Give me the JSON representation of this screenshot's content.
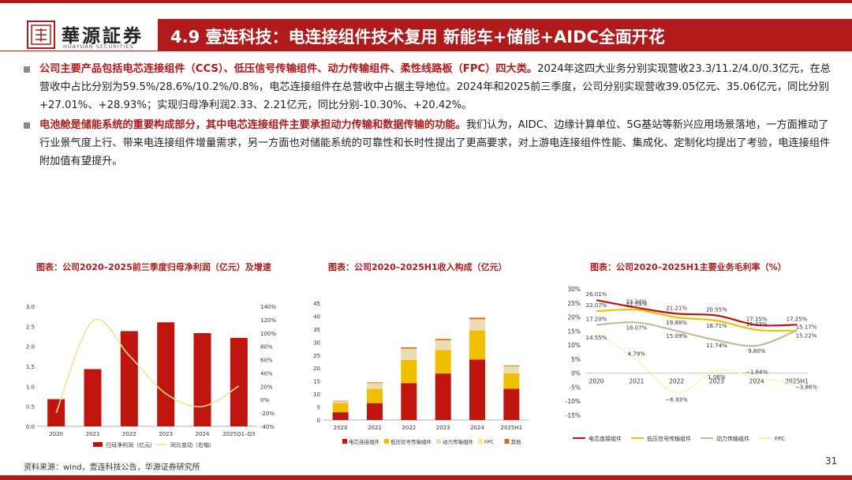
{
  "brand": {
    "name": "華源証券",
    "subtitle": "HUAYUAN SECURITIES",
    "color": "#b11a1a"
  },
  "slide": {
    "title": "4.9 壹连科技：电连接组件技术复用 新能车+储能+AIDC全面开花",
    "page_number": "31"
  },
  "bullets": [
    {
      "highlight": "公司主要产品包括电芯连接组件（CCS）、低压信号传输组件、动力传输组件、柔性线路板（FPC）四大类。",
      "text": "2024年这四大业务分别实现营收23.3/11.2/4.0/0.3亿元，在总营收中占比分别为59.5%/28.6%/10.2%/0.8%，电芯连接组件在总营收中占据主导地位。2024年和2025前三季度，公司分别实现营收39.05亿元、35.06亿元，同比分别+27.01%、+28.93%；实现归母净利润2.33、2.21亿元，同比分别-10.30%、+20.42%。"
    },
    {
      "highlight": "电池舱是储能系统的重要构成部分，其中电芯连接组件主要承担动力传输和数据传输的功能。",
      "text": "我们认为，AIDC、边缘计算单位、5G基站等新兴应用场景落地，一方面推动了行业景气度上行、带来电连接组件增量需求，另一方面也对储能系统的可靠性和长时性提出了更高要求，对上游电连接组件性能、集成化、定制化均提出了考验，电连接组件附加值有望提升。"
    }
  ],
  "chart_data": [
    {
      "type": "bar",
      "title": "图表：公司2020–2025前三季度归母净利润（亿元）及增速",
      "categories": [
        "2020",
        "2021",
        "2022",
        "2023",
        "2024",
        "2025Q1–Q3"
      ],
      "series": [
        {
          "name": "归母净利润（亿元）",
          "values": [
            0.68,
            1.43,
            2.38,
            2.6,
            2.33,
            2.21
          ],
          "color": "#c0150f"
        },
        {
          "name": "同比变动（右轴）",
          "values": [
            -20,
            118,
            66,
            9,
            -10.3,
            20.42
          ],
          "axis": "right",
          "kind": "line",
          "color": "#f0e68c"
        }
      ],
      "ylim": [
        0,
        3.0
      ],
      "yticks": [
        "0.0",
        "0.5",
        "1.0",
        "1.5",
        "2.0",
        "2.5",
        "3.0"
      ],
      "y2lim": [
        -40,
        140
      ],
      "y2ticks": [
        "-40%",
        "-20%",
        "0%",
        "20%",
        "40%",
        "60%",
        "80%",
        "100%",
        "120%",
        "140%"
      ]
    },
    {
      "type": "bar",
      "stacked": true,
      "title": "图表：公司2020–2025H1收入构成（亿元）",
      "categories": [
        "2020",
        "2021",
        "2022",
        "2023",
        "2024",
        "2025H1"
      ],
      "series": [
        {
          "name": "电芯连接组件",
          "values": [
            3,
            6.5,
            14.2,
            17.9,
            23.3,
            12.0
          ],
          "color": "#c0150f"
        },
        {
          "name": "低压信号传输组件",
          "values": [
            3.5,
            5.5,
            9.0,
            9.0,
            11.2,
            6.0
          ],
          "color": "#f2bf00"
        },
        {
          "name": "动力传输组件",
          "values": [
            0.6,
            2.0,
            4.0,
            3.5,
            4.0,
            2.5
          ],
          "color": "#e8ddb4"
        },
        {
          "name": "FPC",
          "values": [
            0.1,
            0.2,
            0.3,
            0.3,
            0.3,
            0.2
          ],
          "color": "#ffe98a"
        },
        {
          "name": "其他",
          "values": [
            0.2,
            0.3,
            0.5,
            0.5,
            0.6,
            0.3
          ],
          "color": "#d9651e"
        }
      ],
      "ylim": [
        0,
        45
      ],
      "yticks": [
        "0",
        "5",
        "10",
        "15",
        "20",
        "25",
        "30",
        "35",
        "40",
        "45"
      ]
    },
    {
      "type": "line",
      "title": "图表：公司2020–2025H1主要业务毛利率（%）",
      "categories": [
        "2020",
        "2021",
        "2022",
        "2023",
        "2024",
        "2025H1"
      ],
      "series": [
        {
          "name": "电芯连接组件",
          "values": [
            26.01,
            23.34,
            21.21,
            20.55,
            17.15,
            17.25
          ],
          "labels": [
            "26.01%",
            "23.34%",
            "21.21%",
            "20.55%",
            "17.15%",
            "17.25%"
          ],
          "color": "#c0150f"
        },
        {
          "name": "低压信号传输组件",
          "values": [
            22.07,
            22.59,
            19.88,
            18.71,
            15.43,
            15.17
          ],
          "labels": [
            "22.07%",
            "22.59%",
            "19.88%",
            "18.71%",
            "15.43%",
            "15.17%"
          ],
          "color": "#f2bf00"
        },
        {
          "name": "动力传输组件",
          "values": [
            17.2,
            18.07,
            15.09,
            11.74,
            9.8,
            15.22
          ],
          "labels": [
            "17.20%",
            "18.07%",
            "15.09%",
            "11.74%",
            "9.80%",
            "15.22%"
          ],
          "color": "#c8b89a"
        },
        {
          "name": "FPC",
          "values": [
            14.55,
            4.79,
            -6.93,
            1.06,
            -1.64,
            -3.86
          ],
          "labels": [
            "14.55%",
            "4.79%",
            "−6.93%",
            "1.06%",
            "−1.64%",
            "−3.86%"
          ],
          "color": "#fff0a0"
        }
      ],
      "ylim": [
        -15,
        30
      ],
      "yticks": [
        "-15%",
        "-10%",
        "-5%",
        "0%",
        "5%",
        "10%",
        "15%",
        "20%",
        "25%",
        "30%"
      ]
    }
  ],
  "footer": {
    "source": "资料来源：wind，壹连科技公告，华源证券研究所"
  }
}
